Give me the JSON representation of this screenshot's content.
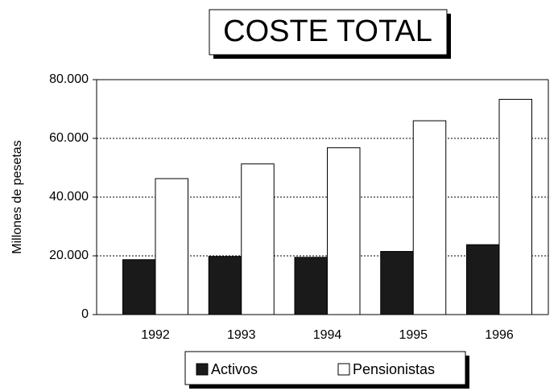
{
  "chart_data": {
    "type": "bar",
    "title": "COSTE TOTAL",
    "y_label": "Millones de pesetas",
    "categories": [
      "1992",
      "1993",
      "1994",
      "1995",
      "1996"
    ],
    "series": [
      {
        "name": "Activos",
        "color": "#1a1a1a",
        "values": [
          18700,
          19800,
          19500,
          21500,
          23800
        ]
      },
      {
        "name": "Pensionistas",
        "color": "#ffffff",
        "values": [
          46300,
          51300,
          56800,
          66000,
          73300
        ]
      }
    ],
    "ylim": [
      0,
      80000
    ],
    "yticks": [
      0,
      {
        "value": 20000,
        "label": "20.000"
      },
      {
        "value": 40000,
        "label": "40.000"
      },
      {
        "value": 60000,
        "label": "60.000"
      },
      {
        "value": 80000,
        "label": "80.000"
      }
    ],
    "grid": true,
    "legend": "bottom"
  }
}
